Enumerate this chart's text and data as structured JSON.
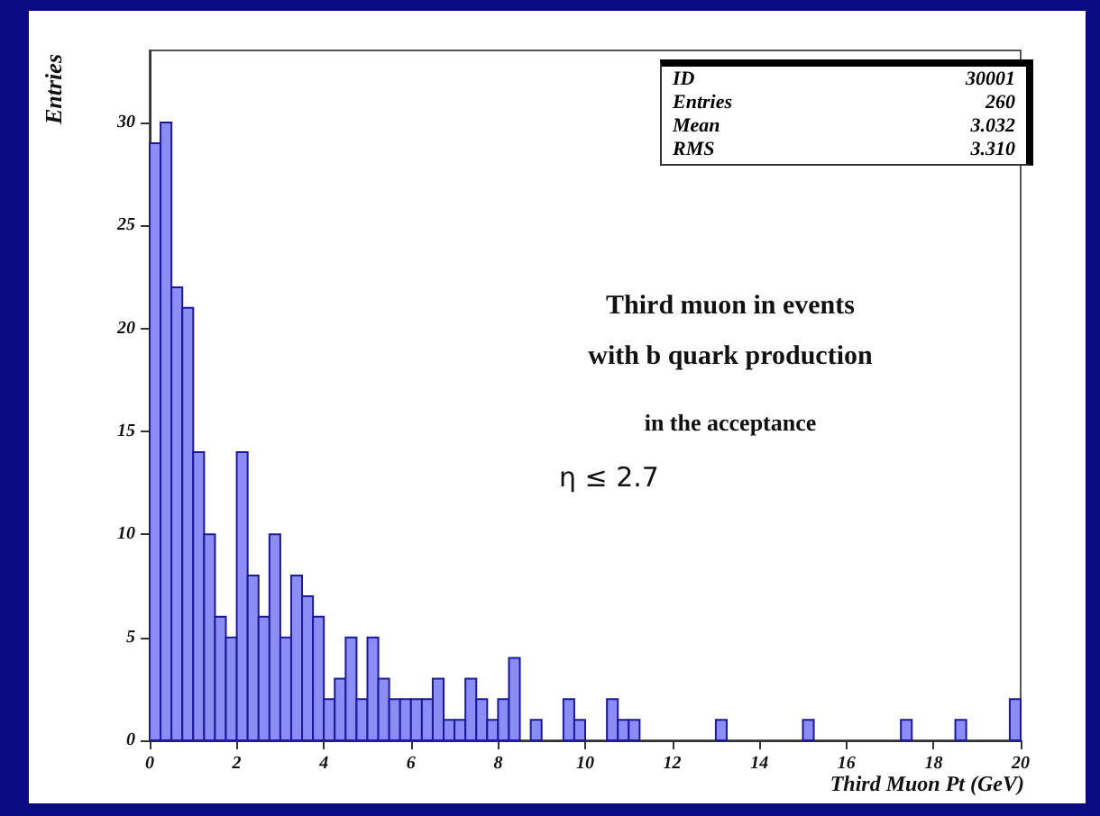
{
  "chart_data": {
    "type": "histogram",
    "xlabel": "Third Muon Pt (GeV)",
    "ylabel": "Entries",
    "bins": [
      0,
      0.25,
      0.5,
      0.75,
      1,
      1.25,
      1.5,
      1.75,
      2,
      2.25,
      2.5,
      2.75,
      3,
      3.25,
      3.5,
      3.75,
      4,
      4.25,
      4.5,
      4.75,
      5,
      5.25,
      5.5,
      5.75,
      6,
      6.25,
      6.5,
      6.75,
      7,
      7.25,
      7.5,
      7.75,
      8,
      8.25,
      8.5,
      8.75,
      9,
      9.25,
      9.5,
      9.75,
      10,
      10.25,
      10.5,
      10.75,
      11,
      11.25,
      11.5,
      11.75,
      12,
      12.25,
      12.5,
      12.75,
      13,
      13.25,
      13.5,
      13.75,
      14,
      14.25,
      14.5,
      14.75,
      15,
      15.25,
      15.5,
      15.75,
      16,
      16.25,
      16.5,
      16.75,
      17,
      17.25,
      17.5,
      17.75,
      18,
      18.25,
      18.5,
      18.75,
      19,
      19.25,
      19.5,
      19.75,
      20
    ],
    "values": [
      29,
      30,
      22,
      21,
      14,
      10,
      6,
      5,
      14,
      8,
      6,
      10,
      5,
      8,
      7,
      6,
      2,
      3,
      5,
      2,
      5,
      3,
      2,
      2,
      2,
      2,
      3,
      1,
      1,
      3,
      2,
      1,
      2,
      4,
      0,
      1,
      0,
      0,
      2,
      1,
      0,
      0,
      2,
      1,
      1,
      0,
      0,
      0,
      0,
      0,
      0,
      0,
      1,
      0,
      0,
      0,
      0,
      0,
      0,
      0,
      1,
      0,
      0,
      0,
      0,
      0,
      0,
      0,
      0,
      1,
      0,
      0,
      0,
      0,
      1,
      0,
      0,
      0,
      0,
      2
    ],
    "color": "#8c8cf5",
    "xlim": [
      0,
      20
    ],
    "xticks": [
      0,
      2,
      4,
      6,
      8,
      10,
      12,
      14,
      16,
      18,
      20
    ],
    "ylim": [
      0,
      33.5
    ],
    "yticks": [
      0,
      5,
      10,
      15,
      20,
      25,
      30
    ],
    "grid": false,
    "annotations": [
      "ID 30001",
      "Entries 260",
      "Mean 3.032",
      "RMS 3.310",
      "Third muon in events",
      "with b quark production",
      "in the acceptance",
      "η ≤ 2.7"
    ]
  }
}
